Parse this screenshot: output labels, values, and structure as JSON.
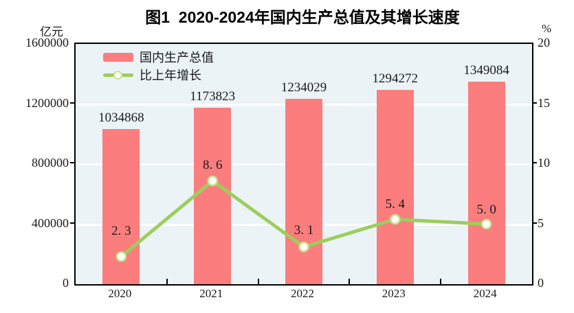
{
  "chart_data": {
    "type": "bar",
    "title": "图1  2020-2024年国内生产总值及其增长速度",
    "categories": [
      "2020",
      "2021",
      "2022",
      "2023",
      "2024"
    ],
    "series": [
      {
        "name": "国内生产总值",
        "kind": "bar",
        "axis": "left",
        "values": [
          1034868,
          1173823,
          1234029,
          1294272,
          1349084
        ],
        "labels": [
          "1034868",
          "1173823",
          "1234029",
          "1294272",
          "1349084"
        ]
      },
      {
        "name": "比上年增长",
        "kind": "line",
        "axis": "right",
        "values": [
          2.3,
          8.6,
          3.1,
          5.4,
          5.0
        ],
        "labels": [
          "2. 3",
          "8. 6",
          "3. 1",
          "5. 4",
          "5. 0"
        ],
        "label_dy": [
          -36,
          -22,
          -23,
          -21,
          -20
        ]
      }
    ],
    "left_axis": {
      "unit": "亿元",
      "ticks": [
        0,
        400000,
        800000,
        1200000,
        1600000
      ],
      "tick_labels": [
        "0",
        "400000",
        "800000",
        "1200000",
        "1600000"
      ],
      "min": 0,
      "max": 1600000
    },
    "right_axis": {
      "unit": "%",
      "ticks": [
        0,
        5,
        10,
        15,
        20
      ],
      "tick_labels": [
        "0",
        "5",
        "10",
        "15",
        "20"
      ],
      "min": 0,
      "max": 20
    },
    "grid": true,
    "legend_position": "top-left"
  },
  "colors": {
    "bar": "#FB7D7D",
    "line": "#9CCE5B",
    "marker_fill": "#FFFEF6",
    "marker_stroke": "#C6E295",
    "plot_bg": "#ECF3F7",
    "grid": "#FFFFFF",
    "axis": "#000000",
    "text": "#1A1A1A"
  }
}
